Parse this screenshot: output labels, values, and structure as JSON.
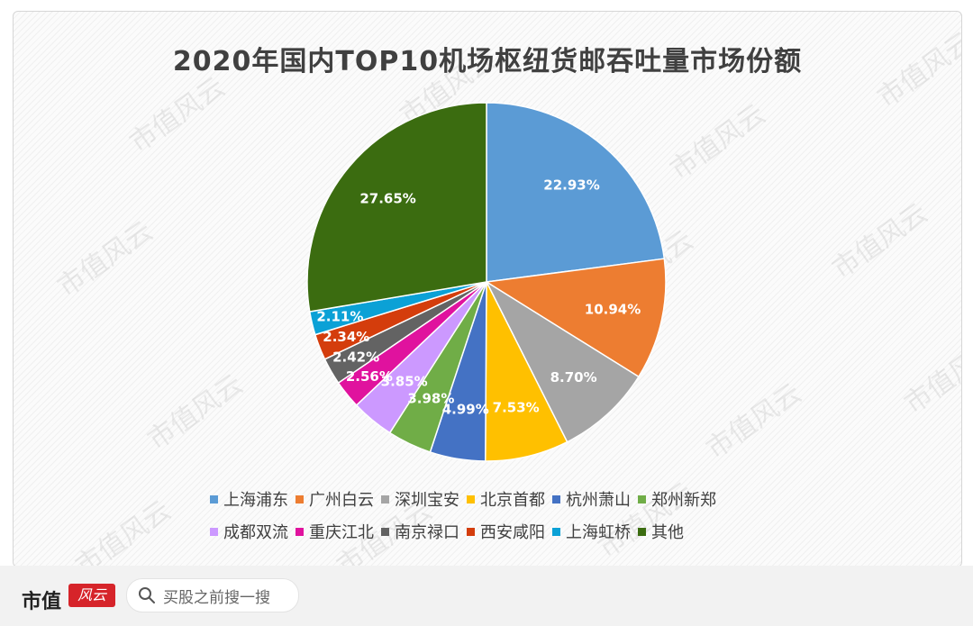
{
  "chart_data": {
    "type": "pie",
    "title": "2020年国内TOP10机场枢纽货邮吞吐量市场份额",
    "slices": [
      {
        "label": "上海浦东",
        "value": 22.93,
        "display": "22.93%",
        "color": "#5b9bd5"
      },
      {
        "label": "广州白云",
        "value": 10.94,
        "display": "10.94%",
        "color": "#ed7d31"
      },
      {
        "label": "深圳宝安",
        "value": 8.7,
        "display": "8.70%",
        "color": "#a5a5a5"
      },
      {
        "label": "北京首都",
        "value": 7.53,
        "display": "7.53%",
        "color": "#ffc000"
      },
      {
        "label": "杭州萧山",
        "value": 4.99,
        "display": "4.99%",
        "color": "#4472c4"
      },
      {
        "label": "郑州新郑",
        "value": 3.98,
        "display": "3.98%",
        "color": "#70ad47"
      },
      {
        "label": "成都双流",
        "value": 3.85,
        "display": "3.85%",
        "color": "#cc99ff"
      },
      {
        "label": "重庆江北",
        "value": 2.56,
        "display": "2.56%",
        "color": "#e0129e"
      },
      {
        "label": "南京禄口",
        "value": 2.42,
        "display": "2.42%",
        "color": "#636363"
      },
      {
        "label": "西安咸阳",
        "value": 2.34,
        "display": "2.34%",
        "color": "#d43d0c"
      },
      {
        "label": "上海虹桥",
        "value": 2.11,
        "display": "2.11%",
        "color": "#0ba1d6"
      },
      {
        "label": "其他",
        "value": 27.65,
        "display": "27.65%",
        "color": "#3b6c10"
      }
    ],
    "legend_position": "bottom"
  },
  "watermark": "市值风云",
  "footer": {
    "brand": "市值",
    "brand_seal": "风云",
    "search_placeholder": "买股之前搜一搜"
  }
}
